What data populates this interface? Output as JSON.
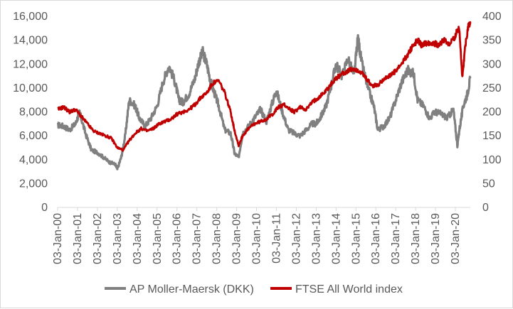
{
  "chart_data": {
    "type": "line",
    "title": "",
    "grid": false,
    "legend_position": "bottom",
    "x_tick_labels": [
      "03-Jan-00",
      "03-Jan-01",
      "03-Jan-02",
      "03-Jan-03",
      "03-Jan-04",
      "03-Jan-05",
      "03-Jan-06",
      "03-Jan-07",
      "03-Jan-08",
      "03-Jan-09",
      "03-Jan-10",
      "03-Jan-11",
      "03-Jan-12",
      "03-Jan-13",
      "03-Jan-14",
      "03-Jan-15",
      "03-Jan-16",
      "03-Jan-17",
      "03-Jan-18",
      "03-Jan-19",
      "03-Jan-20"
    ],
    "x_range": [
      2000.0,
      2020.75
    ],
    "y_left": {
      "range": [
        0,
        16000
      ],
      "ticks": [
        "0",
        "2,000",
        "4,000",
        "6,000",
        "8,000",
        "10,000",
        "12,000",
        "14,000",
        "16,000"
      ],
      "tick_values": [
        0,
        2000,
        4000,
        6000,
        8000,
        10000,
        12000,
        14000,
        16000
      ]
    },
    "y_right": {
      "range": [
        0,
        400
      ],
      "ticks": [
        "0",
        "50",
        "100",
        "150",
        "200",
        "250",
        "300",
        "350",
        "400"
      ],
      "tick_values": [
        0,
        50,
        100,
        150,
        200,
        250,
        300,
        350,
        400
      ]
    },
    "series": [
      {
        "name": "AP Moller-Maersk (DKK)",
        "axis": "left",
        "color": "#808080",
        "x": [
          2000.0,
          2000.3,
          2000.6,
          2000.9,
          2001.1,
          2001.4,
          2001.7,
          2002.0,
          2002.3,
          2002.6,
          2002.9,
          2003.0,
          2003.2,
          2003.4,
          2003.6,
          2003.9,
          2004.1,
          2004.4,
          2004.7,
          2005.0,
          2005.3,
          2005.6,
          2005.9,
          2006.1,
          2006.3,
          2006.6,
          2006.9,
          2007.1,
          2007.3,
          2007.5,
          2007.7,
          2007.9,
          2008.1,
          2008.4,
          2008.7,
          2008.9,
          2009.1,
          2009.3,
          2009.6,
          2009.9,
          2010.2,
          2010.5,
          2010.8,
          2011.0,
          2011.3,
          2011.6,
          2011.9,
          2012.2,
          2012.5,
          2012.8,
          2013.0,
          2013.2,
          2013.5,
          2013.8,
          2014.0,
          2014.3,
          2014.6,
          2014.9,
          2015.1,
          2015.3,
          2015.6,
          2015.9,
          2016.1,
          2016.4,
          2016.7,
          2017.0,
          2017.3,
          2017.6,
          2017.9,
          2018.1,
          2018.4,
          2018.7,
          2019.0,
          2019.3,
          2019.6,
          2019.9,
          2020.1,
          2020.2,
          2020.4,
          2020.6,
          2020.75
        ],
        "y": [
          6900,
          6800,
          6500,
          7000,
          8000,
          6200,
          4800,
          4600,
          4200,
          3800,
          3600,
          3200,
          4200,
          6000,
          9000,
          8500,
          7500,
          6800,
          7500,
          8500,
          10500,
          11900,
          10500,
          9000,
          8800,
          9500,
          10800,
          12200,
          13000,
          12000,
          10500,
          9500,
          8500,
          6500,
          6200,
          4500,
          4200,
          6200,
          6800,
          7500,
          8200,
          7200,
          8800,
          9800,
          8000,
          6500,
          6200,
          6000,
          6500,
          7000,
          7000,
          7500,
          8500,
          10500,
          12000,
          11000,
          12500,
          11000,
          14200,
          12000,
          10000,
          8500,
          6500,
          6800,
          7500,
          9000,
          10500,
          11500,
          11200,
          9000,
          8500,
          7500,
          8000,
          7800,
          7500,
          8200,
          5200,
          6500,
          8500,
          9500,
          10800
        ]
      },
      {
        "name": "FTSE All World index",
        "axis": "right",
        "color": "#c00000",
        "x": [
          2000.0,
          2000.3,
          2000.6,
          2000.9,
          2001.2,
          2001.5,
          2001.8,
          2002.1,
          2002.4,
          2002.7,
          2003.0,
          2003.3,
          2003.6,
          2003.9,
          2004.2,
          2004.5,
          2004.8,
          2005.1,
          2005.4,
          2005.7,
          2006.0,
          2006.3,
          2006.6,
          2006.9,
          2007.2,
          2007.5,
          2007.8,
          2008.1,
          2008.4,
          2008.7,
          2008.9,
          2009.1,
          2009.3,
          2009.6,
          2009.9,
          2010.2,
          2010.5,
          2010.8,
          2011.1,
          2011.4,
          2011.7,
          2011.9,
          2012.2,
          2012.5,
          2012.8,
          2013.1,
          2013.4,
          2013.7,
          2014.0,
          2014.3,
          2014.6,
          2014.9,
          2015.2,
          2015.5,
          2015.8,
          2016.1,
          2016.4,
          2016.7,
          2017.0,
          2017.3,
          2017.6,
          2017.9,
          2018.1,
          2018.3,
          2018.6,
          2018.9,
          2019.1,
          2019.4,
          2019.7,
          2020.0,
          2020.1,
          2020.2,
          2020.35,
          2020.5,
          2020.65,
          2020.75
        ],
        "y": [
          205,
          210,
          200,
          205,
          190,
          175,
          160,
          155,
          150,
          145,
          125,
          120,
          140,
          155,
          165,
          160,
          165,
          175,
          180,
          185,
          195,
          200,
          205,
          215,
          230,
          240,
          260,
          265,
          240,
          200,
          160,
          130,
          150,
          165,
          175,
          180,
          185,
          195,
          210,
          215,
          205,
          200,
          210,
          205,
          220,
          230,
          240,
          255,
          270,
          280,
          285,
          290,
          285,
          270,
          255,
          255,
          270,
          275,
          285,
          300,
          320,
          340,
          350,
          340,
          345,
          345,
          340,
          350,
          340,
          360,
          370,
          375,
          270,
          340,
          380,
          385
        ]
      }
    ]
  }
}
